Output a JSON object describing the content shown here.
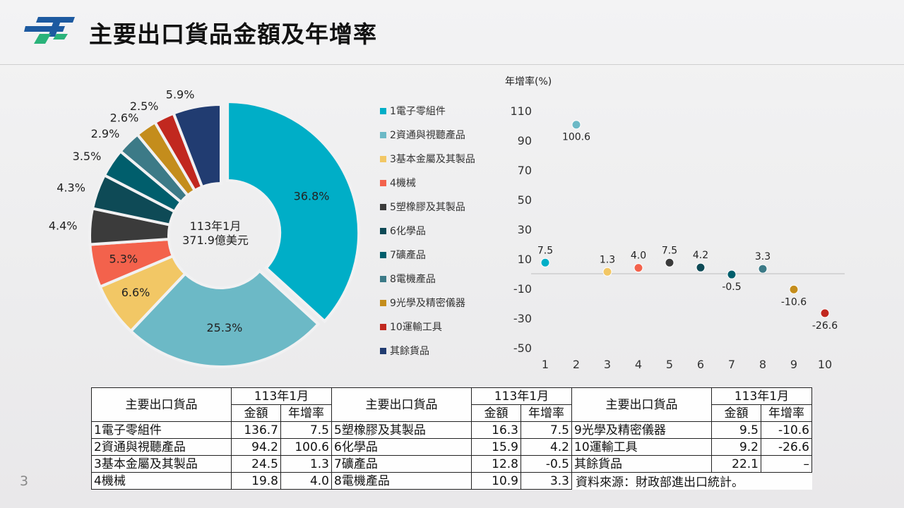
{
  "header": {
    "title": "主要出口貨品金額及年增率",
    "page_number": "3"
  },
  "colors": {
    "c1": "#00AEC7",
    "c2": "#6CB9C6",
    "c3": "#F2C765",
    "c4": "#F3624C",
    "c5": "#3B3B3B",
    "c6": "#0E4A56",
    "c7": "#005E6C",
    "c8": "#3C7A87",
    "c9": "#C48D1C",
    "c10": "#C1281F",
    "c11": "#213C71"
  },
  "chart_data": [
    {
      "type": "pie",
      "subtype": "donut",
      "center_text": [
        "113年1月",
        "371.9億美元"
      ],
      "categories": [
        "1電子零組件",
        "2資通與視聽產品",
        "3基本金屬及其製品",
        "4機械",
        "5塑橡膠及其製品",
        "6化學品",
        "7礦產品",
        "8電機產品",
        "9光學及精密儀器",
        "10運輸工具",
        "其餘貨品"
      ],
      "values": [
        36.8,
        25.3,
        6.6,
        5.3,
        4.4,
        4.3,
        3.5,
        2.9,
        2.6,
        2.5,
        5.9
      ],
      "labels": [
        "36.8%",
        "25.3%",
        "6.6%",
        "5.3%",
        "4.4%",
        "4.3%",
        "3.5%",
        "2.9%",
        "2.6%",
        "2.5%",
        "5.9%"
      ],
      "legend": "right"
    },
    {
      "type": "scatter",
      "ylabel": "年增率(%)",
      "x": [
        1,
        2,
        3,
        4,
        5,
        6,
        7,
        8,
        9,
        10
      ],
      "y": [
        7.5,
        100.6,
        1.3,
        4.0,
        7.5,
        4.2,
        -0.5,
        3.3,
        -10.6,
        -26.6
      ],
      "labels": [
        "7.5",
        "100.6",
        "1.3",
        "4.0",
        "7.5",
        "4.2",
        "-0.5",
        "3.3",
        "-10.6",
        "-26.6"
      ],
      "x_ticks": [
        "1",
        "2",
        "3",
        "4",
        "5",
        "6",
        "7",
        "8",
        "9",
        "10"
      ],
      "y_ticks": [
        "110",
        "90",
        "70",
        "50",
        "30",
        "10",
        "-10",
        "-30",
        "-50"
      ],
      "ylim": [
        -50,
        110
      ],
      "grid": false
    }
  ],
  "table": {
    "col_header": "主要出口貨品",
    "period": "113年1月",
    "amount_label": "金額",
    "rate_label": "年增率",
    "rows": [
      [
        {
          "name": "1電子零組件",
          "amount": "136.7",
          "rate": "7.5"
        },
        {
          "name": "5塑橡膠及其製品",
          "amount": "16.3",
          "rate": "7.5"
        },
        {
          "name": "9光學及精密儀器",
          "amount": "9.5",
          "rate": "-10.6"
        }
      ],
      [
        {
          "name": "2資通與視聽產品",
          "amount": "94.2",
          "rate": "100.6"
        },
        {
          "name": "6化學品",
          "amount": "15.9",
          "rate": "4.2"
        },
        {
          "name": "10運輸工具",
          "amount": "9.2",
          "rate": "-26.6"
        }
      ],
      [
        {
          "name": "3基本金屬及其製品",
          "amount": "24.5",
          "rate": "1.3"
        },
        {
          "name": "7礦產品",
          "amount": "12.8",
          "rate": "-0.5"
        },
        {
          "name": "其餘貨品",
          "amount": "22.1",
          "rate": "–"
        }
      ],
      [
        {
          "name": "4機械",
          "amount": "19.8",
          "rate": "4.0"
        },
        {
          "name": "8電機產品",
          "amount": "10.9",
          "rate": "3.3"
        }
      ]
    ]
  },
  "source_note": "資料來源：財政部進出口統計。"
}
